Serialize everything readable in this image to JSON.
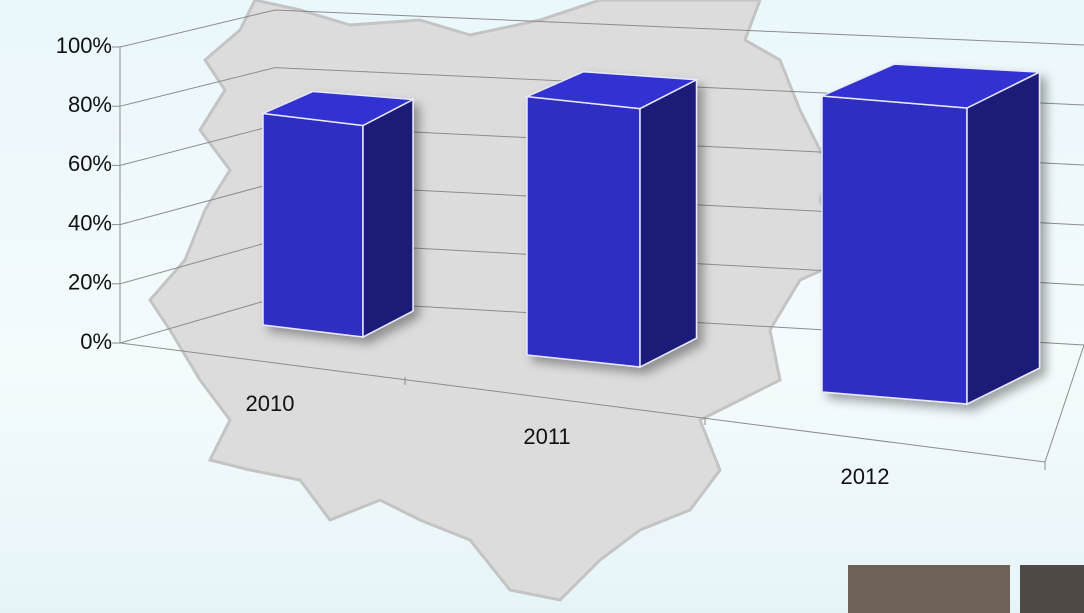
{
  "chart_data": {
    "type": "bar3d",
    "categories": [
      "2010",
      "2011",
      "2012"
    ],
    "values": [
      75,
      80,
      80
    ],
    "color": "#2f2fc2",
    "ylim": [
      0,
      100
    ],
    "yticks": [
      {
        "value": 0,
        "label": "0%"
      },
      {
        "value": 20,
        "label": "20%"
      },
      {
        "value": 40,
        "label": "40%"
      },
      {
        "value": 60,
        "label": "60%"
      },
      {
        "value": 80,
        "label": "80%"
      },
      {
        "value": 100,
        "label": "100%"
      }
    ],
    "grid": true
  }
}
